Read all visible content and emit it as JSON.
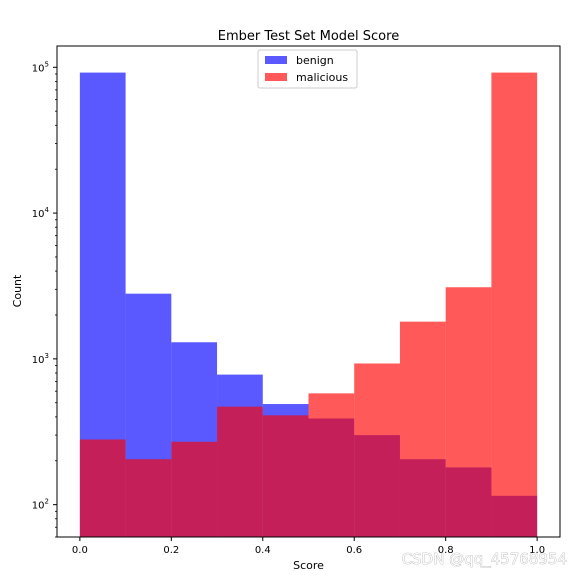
{
  "chart_data": {
    "type": "bar",
    "title": "Ember Test Set Model Score",
    "xlabel": "Score",
    "ylabel": "Count",
    "xlim": [
      -0.05,
      1.05
    ],
    "ylim": [
      60,
      140000
    ],
    "yscale": "log",
    "xticks": [
      "0.0",
      "0.2",
      "0.4",
      "0.6",
      "0.8",
      "1.0"
    ],
    "yticks": [
      {
        "value": 100,
        "base": "10",
        "exp": "2"
      },
      {
        "value": 1000,
        "base": "10",
        "exp": "3"
      },
      {
        "value": 10000,
        "base": "10",
        "exp": "4"
      },
      {
        "value": 100000,
        "base": "10",
        "exp": "5"
      }
    ],
    "bin_edges": [
      0.0,
      0.1,
      0.2,
      0.3,
      0.4,
      0.5,
      0.6,
      0.7,
      0.8,
      0.9,
      1.0
    ],
    "legend_position": "top-center",
    "series": [
      {
        "name": "benign",
        "color": "#0000ff",
        "alpha": 0.65,
        "values": [
          92000,
          2800,
          1300,
          780,
          490,
          390,
          300,
          205,
          180,
          115
        ]
      },
      {
        "name": "malicious",
        "color": "#ff0000",
        "alpha": 0.65,
        "values": [
          280,
          205,
          270,
          470,
          410,
          580,
          930,
          1800,
          3100,
          92000
        ]
      }
    ]
  },
  "watermark": "CSDN @qq_45768954"
}
